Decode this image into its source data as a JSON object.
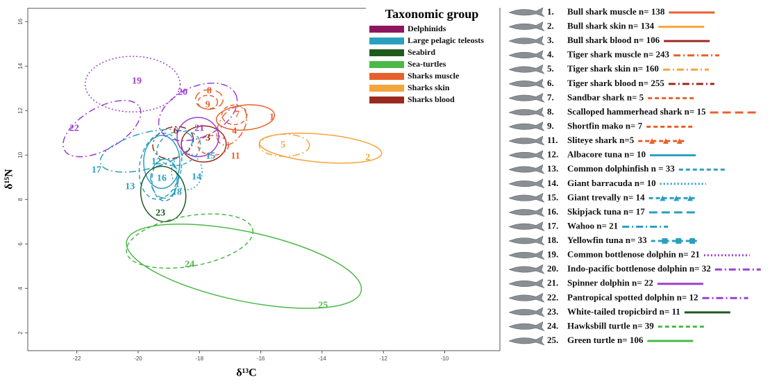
{
  "chart_data": {
    "type": "ellipse",
    "x_label": "δ¹³C",
    "y_label": "δ¹⁵N",
    "xlim": [
      -23.6,
      -8.2
    ],
    "ylim": [
      1.2,
      16.6
    ],
    "xticks": [
      -22,
      -20,
      -18,
      -16,
      -14,
      -12,
      -10
    ],
    "yticks": [
      2,
      4,
      6,
      8,
      10,
      12,
      14,
      16
    ],
    "grid": false,
    "legend_title": "Taxonomic group",
    "groups": [
      {
        "name": "Delphinids",
        "color": "#8e1660"
      },
      {
        "name": "Large pelagic teleosts",
        "color": "#2b9fc0"
      },
      {
        "name": "Seabird",
        "color": "#1f5a1f"
      },
      {
        "name": "Sea-turtles",
        "color": "#4cb848"
      },
      {
        "name": "Sharks muscle",
        "color": "#e8602c"
      },
      {
        "name": "Sharks skin",
        "color": "#f6a43c"
      },
      {
        "name": "Sharks blood",
        "color": "#9b2a1e"
      }
    ],
    "species": [
      {
        "number": "1.",
        "name": "Bull shark muscle n= 138",
        "label": "1",
        "color": "#e8602c",
        "dash": "solid",
        "cx": -16.5,
        "cy": 11.69,
        "rx": 0.95,
        "ry": 0.56,
        "angle": -5
      },
      {
        "number": "2.",
        "name": "Bull shark skin n= 134",
        "label": "2",
        "color": "#f6a43c",
        "dash": "solid",
        "cx": -14.05,
        "cy": 10.31,
        "rx": 2.0,
        "ry": 0.63,
        "angle": 5
      },
      {
        "number": "3.",
        "name": "Bull shark blood n= 106",
        "label": "3",
        "color": "#9b2a1e",
        "dash": "solid",
        "cx": -17.86,
        "cy": 10.5,
        "rx": 0.73,
        "ry": 0.81,
        "angle": 0
      },
      {
        "number": "4.",
        "name": "Tiger shark muscle n= 243",
        "label": "4",
        "color": "#e8602c",
        "dash": "dashdot",
        "cx": -16.95,
        "cy": 11.31,
        "rx": 0.41,
        "ry": 0.94,
        "angle": 30
      },
      {
        "number": "5.",
        "name": "Tiger shark skin n= 160",
        "label": "5",
        "color": "#f6a43c",
        "dash": "dashdot",
        "cx": -15.23,
        "cy": 10.44,
        "rx": 0.82,
        "ry": 0.5,
        "angle": 0
      },
      {
        "number": "6.",
        "name": "Tiger shark blood n= 255",
        "label": "6",
        "color": "#9b2a1e",
        "dash": "dashdot",
        "cx": -18.86,
        "cy": 10.56,
        "rx": 0.68,
        "ry": 0.69,
        "angle": -20
      },
      {
        "number": "7.",
        "name": "Sandbar shark n= 5",
        "label": "7",
        "color": "#e8602c",
        "dash": "dashed",
        "cx": -16.86,
        "cy": 11.81,
        "rx": 0.41,
        "ry": 0.44,
        "angle": 0
      },
      {
        "number": "8.",
        "name": "Scalloped hammerhead shark n= 15",
        "label": "8",
        "color": "#e8602c",
        "dash": "longdash",
        "cx": -17.68,
        "cy": 12.5,
        "rx": 0.45,
        "ry": 0.44,
        "angle": 0
      },
      {
        "number": "9.",
        "name": "Shortfin mako n= 7",
        "label": "9",
        "color": "#e8602c",
        "dash": "dashed",
        "cx": -17.73,
        "cy": 12.38,
        "rx": 0.32,
        "ry": 0.31,
        "angle": 0
      },
      {
        "number": "11.",
        "name": "Sliteye shark n=5",
        "label": "11",
        "color": "#e8602c",
        "dash": "dashed",
        "marker": "triangle",
        "cx": -17.55,
        "cy": 10.44,
        "rx": 0.5,
        "ry": 0.44,
        "angle": 0
      },
      {
        "number": "12.",
        "name": "Albacore tuna n= 10",
        "label": "12",
        "color": "#2b9fc0",
        "dash": "solid",
        "cx": -19.23,
        "cy": 9.69,
        "rx": 0.59,
        "ry": 1.19,
        "angle": 0
      },
      {
        "number": "13.",
        "name": "Common dolphinfish n = 33",
        "label": "13",
        "color": "#2b9fc0",
        "dash": "dashed",
        "cx": -19.27,
        "cy": 9.5,
        "rx": 0.68,
        "ry": 1.5,
        "angle": 10
      },
      {
        "number": "14.",
        "name": "Giant barracuda n= 10",
        "label": "14",
        "color": "#2b9fc0",
        "dash": "dotted",
        "cx": -18.41,
        "cy": 9.25,
        "rx": 0.5,
        "ry": 0.81,
        "angle": 0
      },
      {
        "number": "15.",
        "name": "Giant trevally n= 14",
        "label": "15",
        "color": "#2b9fc0",
        "dash": "dashed",
        "marker": "triangle",
        "cx": -18.68,
        "cy": 10.31,
        "rx": 0.73,
        "ry": 0.75,
        "angle": -20
      },
      {
        "number": "16.",
        "name": "Skipjack tuna n= 17",
        "label": "16",
        "color": "#2b9fc0",
        "dash": "longdash",
        "cx": -19.14,
        "cy": 8.94,
        "rx": 0.45,
        "ry": 0.88,
        "angle": 0
      },
      {
        "number": "17.",
        "name": "Wahoo n= 21",
        "label": "17",
        "color": "#2b9fc0",
        "dash": "dashdot",
        "cx": -19.73,
        "cy": 10.19,
        "rx": 1.55,
        "ry": 0.81,
        "angle": -15
      },
      {
        "number": "18.",
        "name": "Yellowfin tuna n= 33",
        "label": "18",
        "color": "#2b9fc0",
        "dash": "dashed",
        "marker": "square",
        "cx": -19.14,
        "cy": 8.88,
        "rx": 0.41,
        "ry": 0.94,
        "angle": 0
      },
      {
        "number": "19.",
        "name": "Common bottlenose dolphin n= 21",
        "label": "19",
        "color": "#9b3fd0",
        "dash": "dotted",
        "cx": -20.18,
        "cy": 13.19,
        "rx": 1.55,
        "ry": 1.25,
        "angle": 0
      },
      {
        "number": "20.",
        "name": "Indo-pacific bottlenose dolphin n= 32",
        "label": "20",
        "color": "#9b3fd0",
        "dash": "dashdot",
        "cx": -18.05,
        "cy": 11.94,
        "rx": 1.36,
        "ry": 1.13,
        "angle": -25
      },
      {
        "number": "21.",
        "name": "Spinner dolphin n= 22",
        "label": "21",
        "color": "#9b3fd0",
        "dash": "solid",
        "cx": -18.05,
        "cy": 10.81,
        "rx": 0.68,
        "ry": 0.88,
        "angle": 0
      },
      {
        "number": "22.",
        "name": "Pantropical spotted dolphin n= 12",
        "label": "22",
        "color": "#9b3fd0",
        "dash": "dashdot",
        "cx": -21.18,
        "cy": 11.19,
        "rx": 1.41,
        "ry": 0.94,
        "angle": -30
      },
      {
        "number": "23.",
        "name": "White-tailed tropicbird n= 11",
        "label": "23",
        "color": "#1f5a1f",
        "dash": "solid",
        "cx": -19.18,
        "cy": 8.25,
        "rx": 0.73,
        "ry": 1.25,
        "angle": -10
      },
      {
        "number": "24.",
        "name": "Hawksbill turtle n= 39",
        "label": "24",
        "color": "#4cb848",
        "dash": "dashed",
        "cx": -18.32,
        "cy": 6.13,
        "rx": 2.09,
        "ry": 1.13,
        "angle": -10
      },
      {
        "number": "25.",
        "name": "Green turtle n= 106",
        "label": "25",
        "color": "#4cb848",
        "dash": "solid",
        "cx": -16.55,
        "cy": 5.0,
        "rx": 3.91,
        "ry": 1.56,
        "angle": 12
      }
    ]
  }
}
